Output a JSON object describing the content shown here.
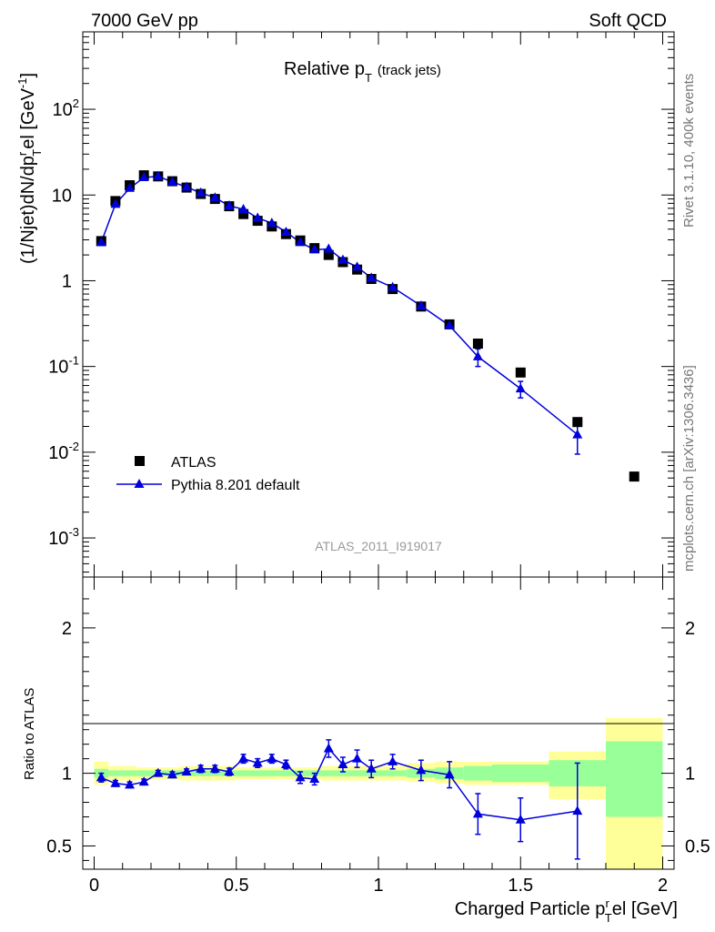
{
  "header": {
    "energy_label": "7000 GeV pp",
    "process_label": "Soft QCD",
    "title_main": "Relative p",
    "title_sub": "T",
    "title_suffix": "(track jets)",
    "analysis_id": "ATLAS_2011_I919017",
    "rivet_label": "Rivet 3.1.10,  400k events",
    "source_label": "mcplots.cern.ch [arXiv:1306.3436]"
  },
  "colors": {
    "data": "#000000",
    "mc": "#0000dd",
    "band_inner": "#99ff99",
    "band_outer": "#ffff99"
  },
  "chart_data": [
    {
      "type": "scatter",
      "panel": "main",
      "title": "Relative pT (track jets)",
      "ylabel": "(1/Njet)dN/dp_T^rel [GeV^-1]",
      "xlim": [
        -0.04,
        2.04
      ],
      "ylim": [
        0.00035,
        800
      ],
      "yscale": "log",
      "y_ticks": [
        {
          "value": 0.001,
          "label": "10",
          "exp": "-3"
        },
        {
          "value": 0.01,
          "label": "10",
          "exp": "-2"
        },
        {
          "value": 0.1,
          "label": "10",
          "exp": "-1"
        },
        {
          "value": 1,
          "label": "1",
          "exp": ""
        },
        {
          "value": 10,
          "label": "10",
          "exp": ""
        },
        {
          "value": 100,
          "label": "10",
          "exp": "2"
        }
      ],
      "legend_position": "bottom-left",
      "series": [
        {
          "name": "ATLAS",
          "marker": "square",
          "x": [
            0.025,
            0.075,
            0.125,
            0.175,
            0.225,
            0.275,
            0.325,
            0.375,
            0.425,
            0.475,
            0.525,
            0.575,
            0.625,
            0.675,
            0.725,
            0.775,
            0.825,
            0.875,
            0.925,
            0.975,
            1.05,
            1.15,
            1.25,
            1.35,
            1.5,
            1.7,
            1.9
          ],
          "y": [
            2.9,
            8.5,
            13.0,
            17.0,
            16.5,
            14.5,
            12.2,
            10.3,
            9.0,
            7.4,
            6.0,
            5.0,
            4.3,
            3.5,
            2.95,
            2.4,
            2.0,
            1.65,
            1.35,
            1.05,
            0.8,
            0.5,
            0.31,
            0.185,
            0.085,
            0.0225,
            0.0052
          ]
        },
        {
          "name": "Pythia 8.201 default",
          "marker": "triangle",
          "x": [
            0.025,
            0.075,
            0.125,
            0.175,
            0.225,
            0.275,
            0.325,
            0.375,
            0.425,
            0.475,
            0.525,
            0.575,
            0.625,
            0.675,
            0.725,
            0.775,
            0.825,
            0.875,
            0.925,
            0.975,
            1.05,
            1.15,
            1.25,
            1.35,
            1.5,
            1.7
          ],
          "y": [
            2.8,
            7.8,
            12.0,
            16.0,
            16.5,
            14.2,
            12.4,
            10.6,
            9.3,
            7.5,
            6.8,
            5.4,
            4.7,
            3.7,
            2.8,
            2.3,
            2.35,
            1.75,
            1.45,
            1.08,
            0.84,
            0.51,
            0.3,
            0.13,
            0.055,
            0.016
          ],
          "yerr_low": [
            0,
            0,
            0,
            0,
            0,
            0,
            0,
            0,
            0,
            0,
            0,
            0,
            0,
            0,
            0,
            0,
            0,
            0,
            0,
            0,
            0,
            0,
            0,
            0.03,
            0.012,
            0.0065
          ],
          "yerr_high": [
            0,
            0,
            0,
            0,
            0,
            0,
            0,
            0,
            0,
            0,
            0,
            0,
            0,
            0,
            0,
            0,
            0,
            0,
            0,
            0,
            0,
            0,
            0,
            0.03,
            0.012,
            0.0065
          ]
        }
      ]
    },
    {
      "type": "scatter",
      "panel": "ratio",
      "ylabel": "Ratio to ATLAS",
      "xlabel": "Charged Particle p_T^rel [GeV]",
      "xlim": [
        -0.04,
        2.04
      ],
      "ylim": [
        0.34,
        2.35
      ],
      "x_ticks": [
        0,
        0.5,
        1,
        1.5,
        2
      ],
      "x_tick_labels": [
        "0",
        "0.5",
        "1",
        "1.5",
        "2"
      ],
      "y_ticks": [
        0.5,
        1,
        2
      ],
      "y_tick_labels": [
        "0.5",
        "1",
        "2"
      ],
      "uncertainty_bins": [
        {
          "x0": 0.0,
          "x1": 0.05,
          "inner": [
            0.97,
            1.03
          ],
          "outer": [
            0.92,
            1.08
          ]
        },
        {
          "x0": 0.05,
          "x1": 0.15,
          "inner": [
            0.98,
            1.02
          ],
          "outer": [
            0.95,
            1.05
          ]
        },
        {
          "x0": 0.15,
          "x1": 0.3,
          "inner": [
            0.98,
            1.02
          ],
          "outer": [
            0.96,
            1.04
          ]
        },
        {
          "x0": 0.3,
          "x1": 0.5,
          "inner": [
            0.98,
            1.02
          ],
          "outer": [
            0.95,
            1.05
          ]
        },
        {
          "x0": 0.5,
          "x1": 0.8,
          "inner": [
            0.98,
            1.02
          ],
          "outer": [
            0.96,
            1.04
          ]
        },
        {
          "x0": 0.8,
          "x1": 1.1,
          "inner": [
            0.98,
            1.02
          ],
          "outer": [
            0.95,
            1.05
          ]
        },
        {
          "x0": 1.1,
          "x1": 1.2,
          "inner": [
            0.97,
            1.03
          ],
          "outer": [
            0.94,
            1.07
          ]
        },
        {
          "x0": 1.2,
          "x1": 1.3,
          "inner": [
            0.96,
            1.04
          ],
          "outer": [
            0.93,
            1.08
          ]
        },
        {
          "x0": 1.3,
          "x1": 1.4,
          "inner": [
            0.95,
            1.05
          ],
          "outer": [
            0.92,
            1.08
          ]
        },
        {
          "x0": 1.4,
          "x1": 1.6,
          "inner": [
            0.94,
            1.06
          ],
          "outer": [
            0.92,
            1.08
          ]
        },
        {
          "x0": 1.6,
          "x1": 1.8,
          "inner": [
            0.91,
            1.09
          ],
          "outer": [
            0.82,
            1.15
          ]
        },
        {
          "x0": 1.8,
          "x1": 2.0,
          "inner": [
            0.7,
            1.22
          ],
          "outer": [
            0.3,
            1.38
          ]
        }
      ],
      "series": [
        {
          "name": "Pythia 8.201 default",
          "x": [
            0.025,
            0.075,
            0.125,
            0.175,
            0.225,
            0.275,
            0.325,
            0.375,
            0.425,
            0.475,
            0.525,
            0.575,
            0.625,
            0.675,
            0.725,
            0.775,
            0.825,
            0.875,
            0.925,
            0.975,
            1.05,
            1.15,
            1.25,
            1.35,
            1.5,
            1.7
          ],
          "y": [
            0.97,
            0.93,
            0.92,
            0.94,
            1.0,
            0.99,
            1.01,
            1.03,
            1.03,
            1.01,
            1.1,
            1.07,
            1.1,
            1.06,
            0.97,
            0.96,
            1.17,
            1.06,
            1.1,
            1.03,
            1.08,
            1.02,
            0.99,
            0.72,
            0.68,
            0.74
          ],
          "yerr": [
            0.03,
            0.02,
            0.02,
            0.02,
            0.02,
            0.02,
            0.02,
            0.025,
            0.025,
            0.025,
            0.03,
            0.03,
            0.03,
            0.03,
            0.04,
            0.04,
            0.06,
            0.05,
            0.06,
            0.06,
            0.05,
            0.07,
            0.09,
            0.14,
            0.15,
            0.33
          ]
        }
      ]
    }
  ]
}
